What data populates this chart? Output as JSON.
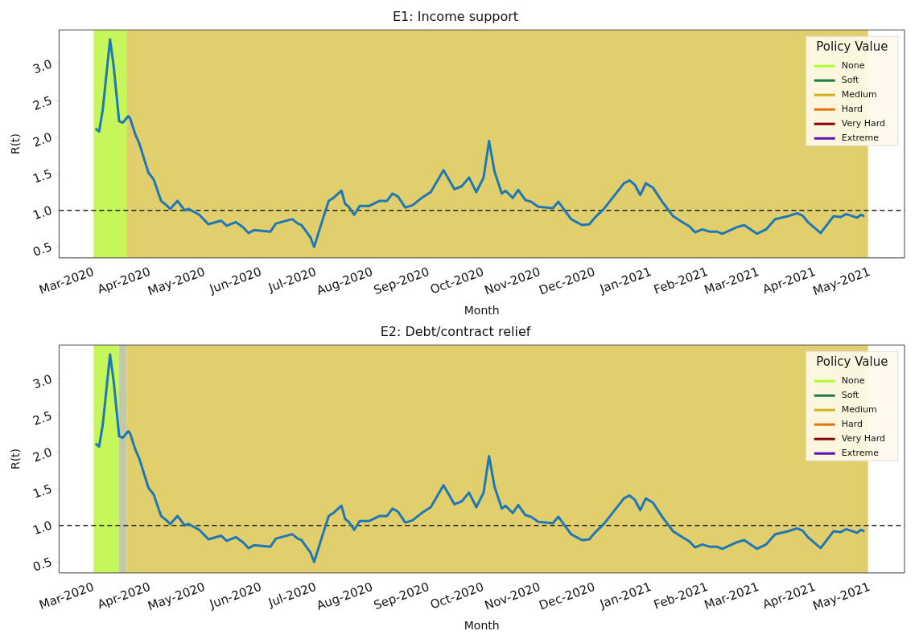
{
  "chart_data": [
    {
      "type": "line",
      "title": "E1: Income support",
      "xlabel": "Month",
      "ylabel": "R(t)",
      "legend_title": "Policy Value",
      "legend": "top right",
      "grid": false,
      "xlim": [
        "2020-02-11",
        "2021-05-20"
      ],
      "ylim": [
        0.35,
        3.47
      ],
      "yticks": [
        {
          "value": 0.5,
          "label": "0.5"
        },
        {
          "value": 1,
          "label": "1.0"
        },
        {
          "value": 1.5,
          "label": "1.5"
        },
        {
          "value": 2,
          "label": "2.0"
        },
        {
          "value": 2.5,
          "label": "2.5"
        },
        {
          "value": 3,
          "label": "3.0"
        }
      ],
      "xticks": [
        {
          "value": "2020-03-01",
          "label": "Mar-2020"
        },
        {
          "value": "2020-04-01",
          "label": "Apr-2020"
        },
        {
          "value": "2020-05-01",
          "label": "May-2020"
        },
        {
          "value": "2020-06-01",
          "label": "Jun-2020"
        },
        {
          "value": "2020-07-01",
          "label": "Jul-2020"
        },
        {
          "value": "2020-08-01",
          "label": "Aug-2020"
        },
        {
          "value": "2020-09-01",
          "label": "Sep-2020"
        },
        {
          "value": "2020-10-01",
          "label": "Oct-2020"
        },
        {
          "value": "2020-11-01",
          "label": "Nov-2020"
        },
        {
          "value": "2020-12-01",
          "label": "Dec-2020"
        },
        {
          "value": "2021-01-01",
          "label": "Jan-2021"
        },
        {
          "value": "2021-02-01",
          "label": "Feb-2021"
        },
        {
          "value": "2021-03-01",
          "label": "Mar-2021"
        },
        {
          "value": "2021-04-01",
          "label": "Apr-2021"
        },
        {
          "value": "2021-05-01",
          "label": "May-2021"
        }
      ],
      "x": [
        "2020-03-02",
        "2020-03-04",
        "2020-03-06",
        "2020-03-10",
        "2020-03-12",
        "2020-03-15",
        "2020-03-17",
        "2020-03-20",
        "2020-03-21",
        "2020-03-24",
        "2020-03-26",
        "2020-03-31",
        "2020-04-03",
        "2020-04-07",
        "2020-04-10",
        "2020-04-12",
        "2020-04-16",
        "2020-04-20",
        "2020-04-22",
        "2020-04-28",
        "2020-05-03",
        "2020-05-10",
        "2020-05-13",
        "2020-05-18",
        "2020-05-22",
        "2020-05-25",
        "2020-05-28",
        "2020-06-06",
        "2020-06-09",
        "2020-06-18",
        "2020-06-21",
        "2020-06-23",
        "2020-06-28",
        "2020-06-30",
        "2020-07-04",
        "2020-07-08",
        "2020-07-11",
        "2020-07-15",
        "2020-07-17",
        "2020-07-19",
        "2020-07-22",
        "2020-07-25",
        "2020-07-30",
        "2020-08-05",
        "2020-08-09",
        "2020-08-12",
        "2020-08-15",
        "2020-08-19",
        "2020-08-23",
        "2020-08-28",
        "2020-09-02",
        "2020-09-09",
        "2020-09-12",
        "2020-09-15",
        "2020-09-19",
        "2020-09-23",
        "2020-09-27",
        "2020-10-01",
        "2020-10-04",
        "2020-10-07",
        "2020-10-11",
        "2020-10-13",
        "2020-10-17",
        "2020-10-20",
        "2020-10-24",
        "2020-10-27",
        "2020-10-31",
        "2020-11-08",
        "2020-11-11",
        "2020-11-18",
        "2020-11-24",
        "2020-11-28",
        "2020-12-01",
        "2020-12-06",
        "2020-12-12",
        "2020-12-17",
        "2020-12-20",
        "2020-12-23",
        "2020-12-26",
        "2020-12-29",
        "2021-01-02",
        "2021-01-07",
        "2021-01-13",
        "2021-01-18",
        "2021-01-22",
        "2021-01-25",
        "2021-01-29",
        "2021-02-02",
        "2021-02-06",
        "2021-02-09",
        "2021-02-17",
        "2021-02-21",
        "2021-02-28",
        "2021-03-05",
        "2021-03-10",
        "2021-03-17",
        "2021-03-22",
        "2021-03-25",
        "2021-03-28",
        "2021-04-04",
        "2021-04-11",
        "2021-04-15",
        "2021-04-18",
        "2021-04-24",
        "2021-04-26",
        "2021-04-28"
      ],
      "series": [
        {
          "color": "#1f77b4",
          "values": [
            2.12,
            2.08,
            2.38,
            3.34,
            2.97,
            2.22,
            2.2,
            2.29,
            2.26,
            2.03,
            1.92,
            1.52,
            1.42,
            1.13,
            1.07,
            1.02,
            1.13,
            1.0,
            1.02,
            0.94,
            0.81,
            0.86,
            0.79,
            0.84,
            0.77,
            0.69,
            0.73,
            0.71,
            0.82,
            0.88,
            0.82,
            0.8,
            0.63,
            0.5,
            0.82,
            1.13,
            1.18,
            1.27,
            1.09,
            1.05,
            0.94,
            1.06,
            1.06,
            1.13,
            1.13,
            1.23,
            1.19,
            1.04,
            1.07,
            1.17,
            1.25,
            1.55,
            1.42,
            1.29,
            1.33,
            1.45,
            1.25,
            1.45,
            1.95,
            1.53,
            1.23,
            1.27,
            1.17,
            1.28,
            1.14,
            1.12,
            1.05,
            1.03,
            1.12,
            0.88,
            0.8,
            0.81,
            0.9,
            1.02,
            1.21,
            1.37,
            1.41,
            1.35,
            1.21,
            1.37,
            1.31,
            1.12,
            0.92,
            0.84,
            0.78,
            0.7,
            0.74,
            0.71,
            0.71,
            0.68,
            0.77,
            0.8,
            0.68,
            0.74,
            0.88,
            0.92,
            0.96,
            0.93,
            0.84,
            0.69,
            0.92,
            0.91,
            0.95,
            0.9,
            0.94,
            0.92
          ]
        },
        {
          "name": "None",
          "color": "#adff2f",
          "values": [
            null,
            null,
            null,
            null,
            null,
            null,
            null,
            null,
            null,
            null,
            null,
            null,
            null,
            null,
            null,
            null,
            null,
            null,
            null,
            null,
            null,
            null,
            null,
            null,
            null,
            null,
            null,
            null,
            null,
            null,
            null,
            null,
            null,
            null,
            null,
            null,
            null,
            null,
            null,
            null,
            null,
            null,
            null,
            null,
            null,
            null,
            null,
            null,
            null,
            null,
            null,
            null,
            null,
            null,
            null,
            null,
            null,
            null,
            null,
            null,
            null,
            null,
            null,
            null,
            null,
            null,
            null,
            null,
            null,
            null,
            null,
            null,
            null,
            null,
            null,
            null,
            null,
            null,
            null,
            null,
            null,
            null,
            null,
            null,
            null,
            null,
            null,
            null,
            null,
            null,
            null,
            null,
            null,
            null,
            null,
            null,
            null,
            null,
            null,
            null,
            null,
            null,
            null,
            null,
            null,
            null
          ]
        },
        {
          "name": "Soft",
          "color": "#1a7a4a",
          "values": [
            null,
            null,
            null,
            null,
            null,
            null,
            null,
            null,
            null,
            null,
            null,
            null,
            null,
            null,
            null,
            null,
            null,
            null,
            null,
            null,
            null,
            null,
            null,
            null,
            null,
            null,
            null,
            null,
            null,
            null,
            null,
            null,
            null,
            null,
            null,
            null,
            null,
            null,
            null,
            null,
            null,
            null,
            null,
            null,
            null,
            null,
            null,
            null,
            null,
            null,
            null,
            null,
            null,
            null,
            null,
            null,
            null,
            null,
            null,
            null,
            null,
            null,
            null,
            null,
            null,
            null,
            null,
            null,
            null,
            null,
            null,
            null,
            null,
            null,
            null,
            null,
            null,
            null,
            null,
            null,
            null,
            null,
            null,
            null,
            null,
            null,
            null,
            null,
            null,
            null,
            null,
            null,
            null,
            null,
            null,
            null,
            null,
            null,
            null,
            null,
            null,
            null,
            null,
            null,
            null,
            null
          ]
        },
        {
          "name": "Medium",
          "color": "#d4b01e",
          "values": [
            null,
            null,
            null,
            null,
            null,
            null,
            null,
            null,
            null,
            null,
            null,
            null,
            null,
            null,
            null,
            null,
            null,
            null,
            null,
            null,
            null,
            null,
            null,
            null,
            null,
            null,
            null,
            null,
            null,
            null,
            null,
            null,
            null,
            null,
            null,
            null,
            null,
            null,
            null,
            null,
            null,
            null,
            null,
            null,
            null,
            null,
            null,
            null,
            null,
            null,
            null,
            null,
            null,
            null,
            null,
            null,
            null,
            null,
            null,
            null,
            null,
            null,
            null,
            null,
            null,
            null,
            null,
            null,
            null,
            null,
            null,
            null,
            null,
            null,
            null,
            null,
            null,
            null,
            null,
            null,
            null,
            null,
            null,
            null,
            null,
            null,
            null,
            null,
            null,
            null,
            null,
            null,
            null,
            null,
            null,
            null,
            null,
            null,
            null,
            null,
            null,
            null,
            null,
            null,
            null,
            null
          ]
        },
        {
          "name": "Hard",
          "color": "#e8700f",
          "values": [
            null,
            null,
            null,
            null,
            null,
            null,
            null,
            null,
            null,
            null,
            null,
            null,
            null,
            null,
            null,
            null,
            null,
            null,
            null,
            null,
            null,
            null,
            null,
            null,
            null,
            null,
            null,
            null,
            null,
            null,
            null,
            null,
            null,
            null,
            null,
            null,
            null,
            null,
            null,
            null,
            null,
            null,
            null,
            null,
            null,
            null,
            null,
            null,
            null,
            null,
            null,
            null,
            null,
            null,
            null,
            null,
            null,
            null,
            null,
            null,
            null,
            null,
            null,
            null,
            null,
            null,
            null,
            null,
            null,
            null,
            null,
            null,
            null,
            null,
            null,
            null,
            null,
            null,
            null,
            null,
            null,
            null,
            null,
            null,
            null,
            null,
            null,
            null,
            null,
            null,
            null,
            null,
            null,
            null,
            null,
            null,
            null,
            null,
            null,
            null,
            null,
            null,
            null,
            null,
            null,
            null
          ]
        },
        {
          "name": "Very Hard",
          "color": "#8b0000",
          "values": [
            null,
            null,
            null,
            null,
            null,
            null,
            null,
            null,
            null,
            null,
            null,
            null,
            null,
            null,
            null,
            null,
            null,
            null,
            null,
            null,
            null,
            null,
            null,
            null,
            null,
            null,
            null,
            null,
            null,
            null,
            null,
            null,
            null,
            null,
            null,
            null,
            null,
            null,
            null,
            null,
            null,
            null,
            null,
            null,
            null,
            null,
            null,
            null,
            null,
            null,
            null,
            null,
            null,
            null,
            null,
            null,
            null,
            null,
            null,
            null,
            null,
            null,
            null,
            null,
            null,
            null,
            null,
            null,
            null,
            null,
            null,
            null,
            null,
            null,
            null,
            null,
            null,
            null,
            null,
            null,
            null,
            null,
            null,
            null,
            null,
            null,
            null,
            null,
            null,
            null,
            null,
            null,
            null,
            null,
            null,
            null,
            null,
            null,
            null,
            null,
            null,
            null,
            null,
            null,
            null,
            null
          ]
        },
        {
          "name": "Extreme",
          "color": "#5a0fb4",
          "values": [
            null,
            null,
            null,
            null,
            null,
            null,
            null,
            null,
            null,
            null,
            null,
            null,
            null,
            null,
            null,
            null,
            null,
            null,
            null,
            null,
            null,
            null,
            null,
            null,
            null,
            null,
            null,
            null,
            null,
            null,
            null,
            null,
            null,
            null,
            null,
            null,
            null,
            null,
            null,
            null,
            null,
            null,
            null,
            null,
            null,
            null,
            null,
            null,
            null,
            null,
            null,
            null,
            null,
            null,
            null,
            null,
            null,
            null,
            null,
            null,
            null,
            null,
            null,
            null,
            null,
            null,
            null,
            null,
            null,
            null,
            null,
            null,
            null,
            null,
            null,
            null,
            null,
            null,
            null,
            null,
            null,
            null,
            null,
            null,
            null,
            null,
            null,
            null,
            null,
            null,
            null,
            null,
            null,
            null,
            null,
            null,
            null,
            null,
            null,
            null,
            null,
            null,
            null,
            null,
            null,
            null
          ]
        }
      ],
      "bands": [
        {
          "axis": "x",
          "from": "2020-03-01",
          "to": "2020-03-19",
          "color": "#c5f75a"
        },
        {
          "axis": "x",
          "from": "2020-03-19",
          "to": "2021-04-30",
          "color": "#e0cf6c"
        }
      ],
      "ref_lines": [
        {
          "axis": "y",
          "value": 1.0,
          "color": "#222222",
          "line_style": "dashed"
        }
      ]
    },
    {
      "type": "line",
      "title": "E2: Debt/contract relief",
      "xlabel": "Month",
      "ylabel": "R(t)",
      "legend_title": "Policy Value",
      "legend": "top right",
      "grid": false,
      "xlim": [
        "2020-02-11",
        "2021-05-20"
      ],
      "ylim": [
        0.35,
        3.47
      ],
      "yticks": [
        {
          "value": 0.5,
          "label": "0.5"
        },
        {
          "value": 1,
          "label": "1.0"
        },
        {
          "value": 1.5,
          "label": "1.5"
        },
        {
          "value": 2,
          "label": "2.0"
        },
        {
          "value": 2.5,
          "label": "2.5"
        },
        {
          "value": 3,
          "label": "3.0"
        }
      ],
      "xticks": [
        {
          "value": "2020-03-01",
          "label": "Mar-2020"
        },
        {
          "value": "2020-04-01",
          "label": "Apr-2020"
        },
        {
          "value": "2020-05-01",
          "label": "May-2020"
        },
        {
          "value": "2020-06-01",
          "label": "Jun-2020"
        },
        {
          "value": "2020-07-01",
          "label": "Jul-2020"
        },
        {
          "value": "2020-08-01",
          "label": "Aug-2020"
        },
        {
          "value": "2020-09-01",
          "label": "Sep-2020"
        },
        {
          "value": "2020-10-01",
          "label": "Oct-2020"
        },
        {
          "value": "2020-11-01",
          "label": "Nov-2020"
        },
        {
          "value": "2020-12-01",
          "label": "Dec-2020"
        },
        {
          "value": "2021-01-01",
          "label": "Jan-2021"
        },
        {
          "value": "2021-02-01",
          "label": "Feb-2021"
        },
        {
          "value": "2021-03-01",
          "label": "Mar-2021"
        },
        {
          "value": "2021-04-01",
          "label": "Apr-2021"
        },
        {
          "value": "2021-05-01",
          "label": "May-2021"
        }
      ],
      "x": [
        "2020-03-02",
        "2020-03-04",
        "2020-03-06",
        "2020-03-10",
        "2020-03-12",
        "2020-03-15",
        "2020-03-17",
        "2020-03-20",
        "2020-03-21",
        "2020-03-24",
        "2020-03-26",
        "2020-03-31",
        "2020-04-03",
        "2020-04-07",
        "2020-04-10",
        "2020-04-12",
        "2020-04-16",
        "2020-04-20",
        "2020-04-22",
        "2020-04-28",
        "2020-05-03",
        "2020-05-10",
        "2020-05-13",
        "2020-05-18",
        "2020-05-22",
        "2020-05-25",
        "2020-05-28",
        "2020-06-06",
        "2020-06-09",
        "2020-06-18",
        "2020-06-21",
        "2020-06-23",
        "2020-06-28",
        "2020-06-30",
        "2020-07-04",
        "2020-07-08",
        "2020-07-11",
        "2020-07-15",
        "2020-07-17",
        "2020-07-19",
        "2020-07-22",
        "2020-07-25",
        "2020-07-30",
        "2020-08-05",
        "2020-08-09",
        "2020-08-12",
        "2020-08-15",
        "2020-08-19",
        "2020-08-23",
        "2020-08-28",
        "2020-09-02",
        "2020-09-09",
        "2020-09-12",
        "2020-09-15",
        "2020-09-19",
        "2020-09-23",
        "2020-09-27",
        "2020-10-01",
        "2020-10-04",
        "2020-10-07",
        "2020-10-11",
        "2020-10-13",
        "2020-10-17",
        "2020-10-20",
        "2020-10-24",
        "2020-10-27",
        "2020-10-31",
        "2020-11-08",
        "2020-11-11",
        "2020-11-18",
        "2020-11-24",
        "2020-11-28",
        "2020-12-01",
        "2020-12-06",
        "2020-12-12",
        "2020-12-17",
        "2020-12-20",
        "2020-12-23",
        "2020-12-26",
        "2020-12-29",
        "2021-01-02",
        "2021-01-07",
        "2021-01-13",
        "2021-01-18",
        "2021-01-22",
        "2021-01-25",
        "2021-01-29",
        "2021-02-02",
        "2021-02-06",
        "2021-02-09",
        "2021-02-17",
        "2021-02-21",
        "2021-02-28",
        "2021-03-05",
        "2021-03-10",
        "2021-03-17",
        "2021-03-22",
        "2021-03-25",
        "2021-03-28",
        "2021-04-04",
        "2021-04-11",
        "2021-04-15",
        "2021-04-18",
        "2021-04-24",
        "2021-04-26",
        "2021-04-28"
      ],
      "series": [
        {
          "color": "#1f77b4",
          "values": [
            2.12,
            2.08,
            2.38,
            3.34,
            2.97,
            2.22,
            2.2,
            2.29,
            2.26,
            2.03,
            1.92,
            1.52,
            1.42,
            1.13,
            1.07,
            1.02,
            1.13,
            1.0,
            1.02,
            0.94,
            0.81,
            0.86,
            0.79,
            0.84,
            0.77,
            0.69,
            0.73,
            0.71,
            0.82,
            0.88,
            0.82,
            0.8,
            0.63,
            0.5,
            0.82,
            1.13,
            1.18,
            1.27,
            1.09,
            1.05,
            0.94,
            1.06,
            1.06,
            1.13,
            1.13,
            1.23,
            1.19,
            1.04,
            1.07,
            1.17,
            1.25,
            1.55,
            1.42,
            1.29,
            1.33,
            1.45,
            1.25,
            1.45,
            1.95,
            1.53,
            1.23,
            1.27,
            1.17,
            1.28,
            1.14,
            1.12,
            1.05,
            1.03,
            1.12,
            0.88,
            0.8,
            0.81,
            0.9,
            1.02,
            1.21,
            1.37,
            1.41,
            1.35,
            1.21,
            1.37,
            1.31,
            1.12,
            0.92,
            0.84,
            0.78,
            0.7,
            0.74,
            0.71,
            0.71,
            0.68,
            0.77,
            0.8,
            0.68,
            0.74,
            0.88,
            0.92,
            0.96,
            0.93,
            0.84,
            0.69,
            0.92,
            0.91,
            0.95,
            0.9,
            0.94,
            0.92
          ]
        },
        {
          "name": "None",
          "color": "#adff2f",
          "values": [
            null,
            null,
            null,
            null,
            null,
            null,
            null,
            null,
            null,
            null,
            null,
            null,
            null,
            null,
            null,
            null,
            null,
            null,
            null,
            null,
            null,
            null,
            null,
            null,
            null,
            null,
            null,
            null,
            null,
            null,
            null,
            null,
            null,
            null,
            null,
            null,
            null,
            null,
            null,
            null,
            null,
            null,
            null,
            null,
            null,
            null,
            null,
            null,
            null,
            null,
            null,
            null,
            null,
            null,
            null,
            null,
            null,
            null,
            null,
            null,
            null,
            null,
            null,
            null,
            null,
            null,
            null,
            null,
            null,
            null,
            null,
            null,
            null,
            null,
            null,
            null,
            null,
            null,
            null,
            null,
            null,
            null,
            null,
            null,
            null,
            null,
            null,
            null,
            null,
            null,
            null,
            null,
            null,
            null,
            null,
            null,
            null,
            null,
            null,
            null,
            null,
            null,
            null,
            null,
            null,
            null
          ]
        },
        {
          "name": "Soft",
          "color": "#1a7a4a",
          "values": [
            null,
            null,
            null,
            null,
            null,
            null,
            null,
            null,
            null,
            null,
            null,
            null,
            null,
            null,
            null,
            null,
            null,
            null,
            null,
            null,
            null,
            null,
            null,
            null,
            null,
            null,
            null,
            null,
            null,
            null,
            null,
            null,
            null,
            null,
            null,
            null,
            null,
            null,
            null,
            null,
            null,
            null,
            null,
            null,
            null,
            null,
            null,
            null,
            null,
            null,
            null,
            null,
            null,
            null,
            null,
            null,
            null,
            null,
            null,
            null,
            null,
            null,
            null,
            null,
            null,
            null,
            null,
            null,
            null,
            null,
            null,
            null,
            null,
            null,
            null,
            null,
            null,
            null,
            null,
            null,
            null,
            null,
            null,
            null,
            null,
            null,
            null,
            null,
            null,
            null,
            null,
            null,
            null,
            null,
            null,
            null,
            null,
            null,
            null,
            null,
            null,
            null,
            null,
            null,
            null,
            null
          ]
        },
        {
          "name": "Medium",
          "color": "#d4b01e",
          "values": [
            null,
            null,
            null,
            null,
            null,
            null,
            null,
            null,
            null,
            null,
            null,
            null,
            null,
            null,
            null,
            null,
            null,
            null,
            null,
            null,
            null,
            null,
            null,
            null,
            null,
            null,
            null,
            null,
            null,
            null,
            null,
            null,
            null,
            null,
            null,
            null,
            null,
            null,
            null,
            null,
            null,
            null,
            null,
            null,
            null,
            null,
            null,
            null,
            null,
            null,
            null,
            null,
            null,
            null,
            null,
            null,
            null,
            null,
            null,
            null,
            null,
            null,
            null,
            null,
            null,
            null,
            null,
            null,
            null,
            null,
            null,
            null,
            null,
            null,
            null,
            null,
            null,
            null,
            null,
            null,
            null,
            null,
            null,
            null,
            null,
            null,
            null,
            null,
            null,
            null,
            null,
            null,
            null,
            null,
            null,
            null,
            null,
            null,
            null,
            null,
            null,
            null,
            null,
            null,
            null,
            null
          ]
        },
        {
          "name": "Hard",
          "color": "#e8700f",
          "values": [
            null,
            null,
            null,
            null,
            null,
            null,
            null,
            null,
            null,
            null,
            null,
            null,
            null,
            null,
            null,
            null,
            null,
            null,
            null,
            null,
            null,
            null,
            null,
            null,
            null,
            null,
            null,
            null,
            null,
            null,
            null,
            null,
            null,
            null,
            null,
            null,
            null,
            null,
            null,
            null,
            null,
            null,
            null,
            null,
            null,
            null,
            null,
            null,
            null,
            null,
            null,
            null,
            null,
            null,
            null,
            null,
            null,
            null,
            null,
            null,
            null,
            null,
            null,
            null,
            null,
            null,
            null,
            null,
            null,
            null,
            null,
            null,
            null,
            null,
            null,
            null,
            null,
            null,
            null,
            null,
            null,
            null,
            null,
            null,
            null,
            null,
            null,
            null,
            null,
            null,
            null,
            null,
            null,
            null,
            null,
            null,
            null,
            null,
            null,
            null,
            null,
            null,
            null,
            null,
            null,
            null
          ]
        },
        {
          "name": "Very Hard",
          "color": "#8b0000",
          "values": [
            null,
            null,
            null,
            null,
            null,
            null,
            null,
            null,
            null,
            null,
            null,
            null,
            null,
            null,
            null,
            null,
            null,
            null,
            null,
            null,
            null,
            null,
            null,
            null,
            null,
            null,
            null,
            null,
            null,
            null,
            null,
            null,
            null,
            null,
            null,
            null,
            null,
            null,
            null,
            null,
            null,
            null,
            null,
            null,
            null,
            null,
            null,
            null,
            null,
            null,
            null,
            null,
            null,
            null,
            null,
            null,
            null,
            null,
            null,
            null,
            null,
            null,
            null,
            null,
            null,
            null,
            null,
            null,
            null,
            null,
            null,
            null,
            null,
            null,
            null,
            null,
            null,
            null,
            null,
            null,
            null,
            null,
            null,
            null,
            null,
            null,
            null,
            null,
            null,
            null,
            null,
            null,
            null,
            null,
            null,
            null,
            null,
            null,
            null,
            null,
            null,
            null,
            null,
            null,
            null,
            null
          ]
        },
        {
          "name": "Extreme",
          "color": "#5a0fb4",
          "values": [
            null,
            null,
            null,
            null,
            null,
            null,
            null,
            null,
            null,
            null,
            null,
            null,
            null,
            null,
            null,
            null,
            null,
            null,
            null,
            null,
            null,
            null,
            null,
            null,
            null,
            null,
            null,
            null,
            null,
            null,
            null,
            null,
            null,
            null,
            null,
            null,
            null,
            null,
            null,
            null,
            null,
            null,
            null,
            null,
            null,
            null,
            null,
            null,
            null,
            null,
            null,
            null,
            null,
            null,
            null,
            null,
            null,
            null,
            null,
            null,
            null,
            null,
            null,
            null,
            null,
            null,
            null,
            null,
            null,
            null,
            null,
            null,
            null,
            null,
            null,
            null,
            null,
            null,
            null,
            null,
            null,
            null,
            null,
            null,
            null,
            null,
            null,
            null,
            null,
            null,
            null,
            null,
            null,
            null,
            null,
            null,
            null,
            null,
            null,
            null,
            null,
            null,
            null,
            null,
            null,
            null
          ]
        }
      ],
      "bands": [
        {
          "axis": "x",
          "from": "2020-03-01",
          "to": "2020-03-15",
          "color": "#c5f75a"
        },
        {
          "axis": "x",
          "from": "2020-03-15",
          "to": "2020-03-19",
          "color": "#c2c9a6"
        },
        {
          "axis": "x",
          "from": "2020-03-19",
          "to": "2021-04-30",
          "color": "#e0cf6c"
        }
      ],
      "ref_lines": [
        {
          "axis": "y",
          "value": 1.0,
          "color": "#222222",
          "line_style": "dashed"
        }
      ]
    }
  ]
}
